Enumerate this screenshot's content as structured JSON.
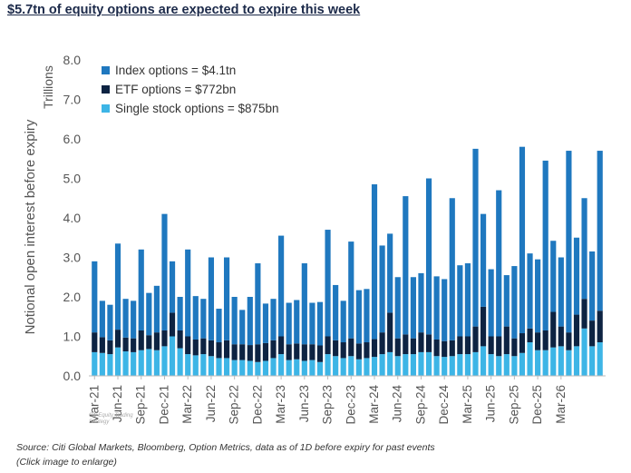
{
  "title": "$5.7tn of equity options are expected to expire this week",
  "source": "Source: Citi Global Markets, Bloomberg, Option Metrics, data as of 1D before expiry for past events",
  "enlarge_note": "(Click image to enlarge)",
  "watermark": "Citi Equity Trading Strategy",
  "colors": {
    "index": "#1f78bf",
    "etf": "#0d2342",
    "single": "#3db5e6",
    "axis": "#bbbbbb",
    "text": "#555555"
  },
  "chart_data": {
    "type": "bar",
    "stacked": true,
    "ylabel": "Notional open interest before expiry",
    "unit_label": "Trillions",
    "ylim": [
      0,
      8
    ],
    "yticks": [
      "0.0",
      "1.0",
      "2.0",
      "3.0",
      "4.0",
      "5.0",
      "6.0",
      "7.0",
      "8.0"
    ],
    "grid": false,
    "legend_position": "top-left",
    "tick_labels": [
      "Mar-21",
      "Jun-21",
      "Sep-21",
      "Dec-21",
      "Mar-22",
      "Jun-22",
      "Sep-22",
      "Dec-22",
      "Mar-23",
      "Jun-23",
      "Sep-23",
      "Dec-23",
      "Mar-24",
      "Jun-24",
      "Sep-24",
      "Dec-24",
      "Mar-25",
      "Jun-25",
      "Sep-25",
      "Dec-25",
      "Mar-26"
    ],
    "series": [
      {
        "name": "Single stock options = $875bn",
        "key": "single",
        "values": [
          0.6,
          0.58,
          0.55,
          0.72,
          0.62,
          0.6,
          0.65,
          0.68,
          0.65,
          0.75,
          1.0,
          0.7,
          0.55,
          0.52,
          0.55,
          0.5,
          0.45,
          0.45,
          0.4,
          0.4,
          0.38,
          0.35,
          0.38,
          0.45,
          0.55,
          0.4,
          0.42,
          0.38,
          0.4,
          0.35,
          0.55,
          0.5,
          0.45,
          0.5,
          0.42,
          0.45,
          0.48,
          0.55,
          0.6,
          0.5,
          0.55,
          0.55,
          0.6,
          0.6,
          0.5,
          0.48,
          0.5,
          0.55,
          0.55,
          0.6,
          0.75,
          0.55,
          0.5,
          0.55,
          0.5,
          0.58,
          0.85,
          0.65,
          0.65,
          0.72,
          0.75,
          0.65,
          0.75,
          1.2,
          0.75,
          0.85
        ]
      },
      {
        "name": "ETF options = $772bn",
        "key": "etf",
        "values": [
          0.5,
          0.4,
          0.35,
          0.45,
          0.35,
          0.35,
          0.5,
          0.35,
          0.45,
          0.4,
          0.6,
          0.45,
          0.45,
          0.4,
          0.4,
          0.4,
          0.4,
          0.45,
          0.4,
          0.4,
          0.4,
          0.45,
          0.45,
          0.45,
          0.45,
          0.4,
          0.4,
          0.42,
          0.4,
          0.42,
          0.45,
          0.4,
          0.4,
          0.45,
          0.4,
          0.4,
          0.45,
          0.55,
          1.0,
          0.45,
          0.5,
          0.4,
          0.5,
          0.45,
          0.42,
          0.4,
          0.4,
          0.45,
          0.45,
          0.65,
          1.0,
          0.45,
          0.5,
          0.7,
          0.45,
          0.5,
          0.35,
          0.45,
          0.5,
          0.9,
          0.5,
          0.45,
          0.8,
          0.75,
          0.65,
          0.8
        ]
      },
      {
        "name": "Index options = $4.1tn",
        "key": "index",
        "values": [
          1.8,
          0.92,
          0.9,
          2.18,
          0.98,
          0.95,
          2.05,
          1.07,
          1.18,
          2.95,
          1.3,
          0.85,
          2.2,
          1.1,
          1.0,
          2.1,
          0.85,
          2.1,
          1.2,
          0.87,
          1.22,
          2.05,
          1.0,
          1.05,
          2.55,
          1.05,
          1.1,
          2.05,
          1.05,
          1.1,
          2.7,
          1.4,
          1.05,
          2.45,
          1.35,
          1.35,
          3.92,
          2.2,
          2.0,
          1.55,
          3.5,
          1.55,
          1.5,
          3.95,
          1.6,
          1.57,
          3.6,
          1.8,
          1.85,
          4.5,
          2.35,
          1.7,
          3.7,
          1.3,
          1.83,
          4.72,
          1.9,
          1.85,
          4.3,
          1.8,
          1.75,
          4.6,
          1.95,
          2.55,
          1.75,
          4.05
        ]
      }
    ]
  }
}
